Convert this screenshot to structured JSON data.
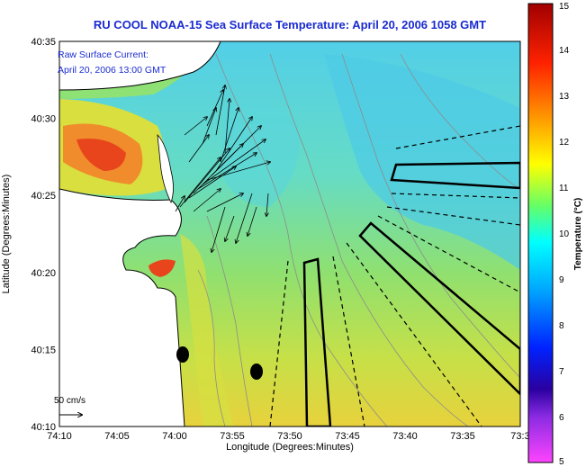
{
  "title": "RU COOL  NOAA-15  Sea Surface Temperature:  April 20, 2006 1058 GMT",
  "note": {
    "line1": "Raw Surface Current:",
    "line2": "April 20, 2006 13:00 GMT"
  },
  "axes": {
    "xlabel": "Longitude (Degrees:Minutes)",
    "ylabel": "Latitude (Degrees:Minutes)",
    "xticks": [
      "74:10",
      "74:05",
      "74:00",
      "73:55",
      "73:50",
      "73:45",
      "73:40",
      "73:35",
      "73:3"
    ],
    "yticks": [
      "40:35",
      "40:30",
      "40:25",
      "40:20",
      "40:15",
      "40:10"
    ]
  },
  "scale_label": "50 cm/s",
  "colorbar": {
    "label": "Temperature (°C)",
    "ticks": [
      "15",
      "14",
      "13",
      "12",
      "11",
      "10",
      "9",
      "8",
      "7",
      "6",
      "5"
    ],
    "min": 5,
    "max": 15,
    "colors": [
      "#ff44ff",
      "#2a00a0",
      "#0022ff",
      "#00aaff",
      "#00ffff",
      "#66ff66",
      "#ffff00",
      "#ff9900",
      "#ff2200",
      "#a00000"
    ]
  },
  "colors": {
    "title": "#1a2bd0",
    "land": "#ffffff",
    "water_warm": "#f3c840",
    "water_cool": "#58d3ee",
    "hot": "#e8451c"
  }
}
